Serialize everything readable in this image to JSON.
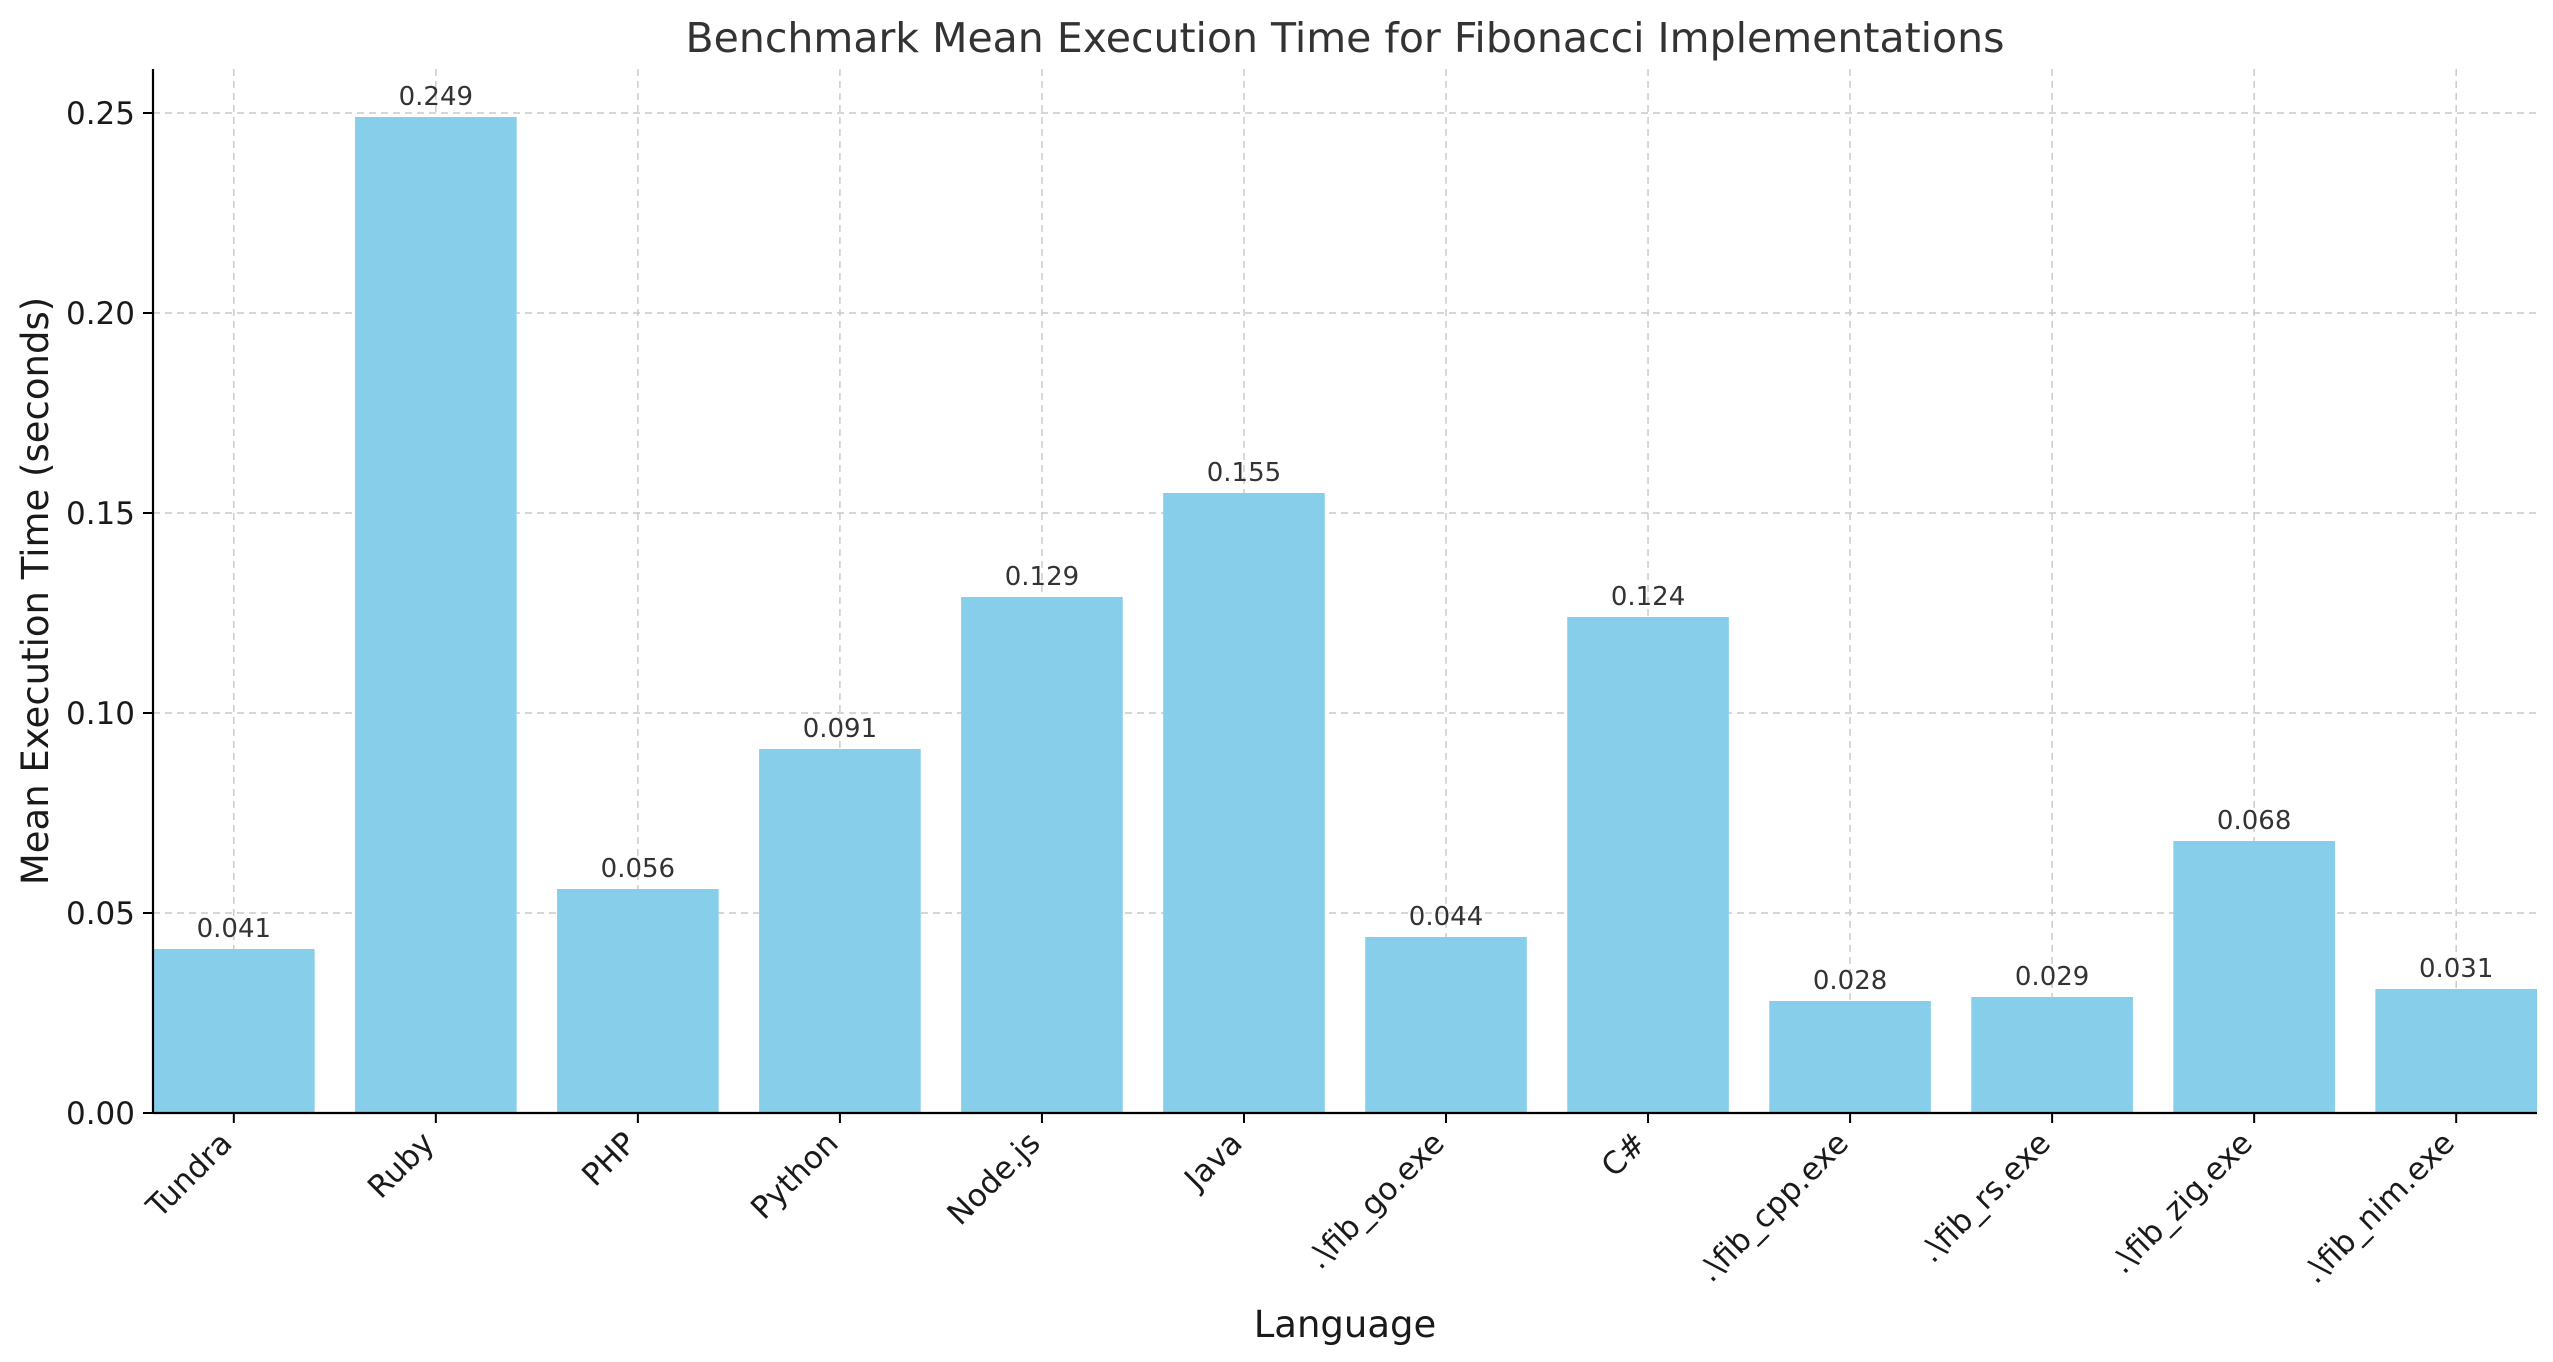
{
  "chart_data": {
    "type": "bar",
    "title": "Benchmark Mean Execution Time for Fibonacci Implementations",
    "xlabel": "Language",
    "ylabel": "Mean Execution Time (seconds)",
    "categories": [
      "Tundra",
      "Ruby",
      "PHP",
      "Python",
      "Node.js",
      "Java",
      ".\\fib_go.exe",
      "C#",
      ".\\fib_cpp.exe",
      ".\\fib_rs.exe",
      ".\\fib_zig.exe",
      ".\\fib_nim.exe"
    ],
    "values": [
      0.041,
      0.249,
      0.056,
      0.091,
      0.129,
      0.155,
      0.044,
      0.124,
      0.028,
      0.029,
      0.068,
      0.031
    ],
    "value_labels": [
      "0.041",
      "0.249",
      "0.056",
      "0.091",
      "0.129",
      "0.155",
      "0.044",
      "0.124",
      "0.028",
      "0.029",
      "0.068",
      "0.031"
    ],
    "ylim": [
      0,
      0.261
    ],
    "yticks": [
      0.0,
      0.05,
      0.1,
      0.15,
      0.2,
      0.25
    ],
    "ytick_labels": [
      "0.00",
      "0.05",
      "0.10",
      "0.15",
      "0.20",
      "0.25"
    ],
    "grid": true,
    "bar_color": "#87ceeb",
    "legend": "none"
  }
}
